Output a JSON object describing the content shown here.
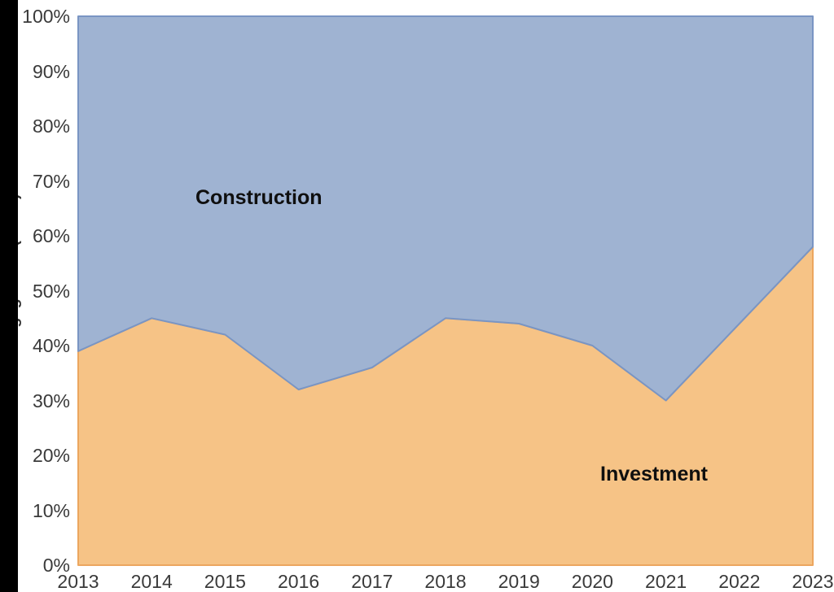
{
  "chart_data": {
    "type": "area",
    "stacking": "percent",
    "title": "",
    "xlabel": "",
    "ylabel": "Share of engagement (value)",
    "x": [
      "2013",
      "2014",
      "2015",
      "2016",
      "2017",
      "2018",
      "2019",
      "2020",
      "2021",
      "2022",
      "2023"
    ],
    "ylim": [
      0,
      100
    ],
    "y_ticks": [
      0,
      10,
      20,
      30,
      40,
      50,
      60,
      70,
      80,
      90,
      100
    ],
    "y_tick_labels": [
      "0%",
      "10%",
      "20%",
      "30%",
      "40%",
      "50%",
      "60%",
      "70%",
      "80%",
      "90%",
      "100%"
    ],
    "grid": false,
    "legend_position": "labels-inside-areas",
    "series": [
      {
        "name": "Investment",
        "values": [
          39,
          45,
          42,
          32,
          36,
          45,
          44,
          40,
          30,
          44,
          58
        ],
        "fill": "#F6C386",
        "stroke": "#ECA65F"
      },
      {
        "name": "Construction",
        "values": [
          61,
          55,
          58,
          68,
          64,
          55,
          56,
          60,
          70,
          56,
          42
        ],
        "fill": "#9FB3D2",
        "stroke": "#7A95C3"
      }
    ]
  },
  "decorations": {
    "left_bar_color": "#000000",
    "background_color": "#FFFFFF",
    "tick_text_color": "#3A3A3A",
    "area_label_color": "#0F0F0F"
  }
}
